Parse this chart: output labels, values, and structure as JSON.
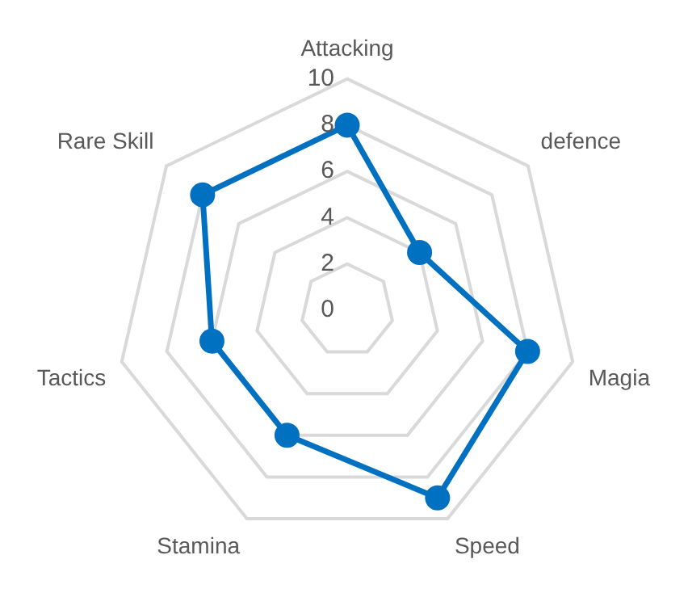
{
  "chart_data": {
    "type": "radar",
    "categories": [
      "Attacking",
      "defence",
      "Magia",
      "Speed",
      "Stamina",
      "Tactics",
      "Rare Skill"
    ],
    "series": [
      {
        "color": "#0070c0",
        "values": [
          8,
          4,
          8,
          9,
          6,
          6,
          8
        ]
      }
    ],
    "ylim": [
      0,
      10
    ],
    "yticks": [
      0,
      2,
      4,
      6,
      8,
      10
    ],
    "grid": true,
    "marker": "circle",
    "legend": false
  }
}
